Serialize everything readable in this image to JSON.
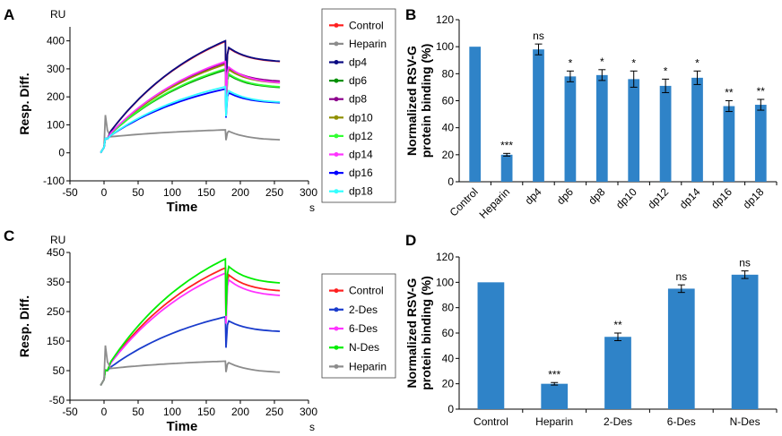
{
  "chart_data": [
    {
      "panel": "A",
      "type": "line",
      "unit": "RU",
      "xlabel": "Time",
      "x_unit": "s",
      "ylabel": "Resp. Diff.",
      "xlim": [
        -50,
        300
      ],
      "ylim": [
        -100,
        450
      ],
      "xticks": [
        "-50",
        "0",
        "50",
        "100",
        "150",
        "200",
        "250",
        "300"
      ],
      "yticks": [
        "-100",
        "0",
        "100",
        "200",
        "300",
        "400"
      ],
      "series": [
        {
          "name": "Control",
          "color": "#ff2020",
          "peak": 398,
          "end": 322
        },
        {
          "name": "Heparin",
          "color": "#8c8c8c",
          "peak": 82,
          "end": 44
        },
        {
          "name": "dp4",
          "color": "#0a0a82",
          "peak": 400,
          "end": 323
        },
        {
          "name": "dp6",
          "color": "#009000",
          "peak": 296,
          "end": 230
        },
        {
          "name": "dp8",
          "color": "#8c008c",
          "peak": 322,
          "end": 252
        },
        {
          "name": "dp10",
          "color": "#909000",
          "peak": 316,
          "end": 246
        },
        {
          "name": "dp12",
          "color": "#33ff33",
          "peak": 300,
          "end": 232
        },
        {
          "name": "dp14",
          "color": "#ff33ff",
          "peak": 326,
          "end": 246
        },
        {
          "name": "dp16",
          "color": "#0000ff",
          "peak": 228,
          "end": 176
        },
        {
          "name": "dp18",
          "color": "#33ffff",
          "peak": 236,
          "end": 178
        }
      ]
    },
    {
      "panel": "B",
      "type": "bar",
      "ylabel": "Normalized RSV-G protein binding (%)",
      "ylim": [
        0,
        120
      ],
      "yticks": [
        "0",
        "20",
        "40",
        "60",
        "80",
        "100",
        "120"
      ],
      "categories": [
        "Control",
        "Heparin",
        "dp4",
        "dp6",
        "dp8",
        "dp10",
        "dp12",
        "dp14",
        "dp16",
        "dp18"
      ],
      "values": [
        100,
        20,
        98,
        78,
        79,
        76,
        71,
        77,
        56,
        57
      ],
      "errors": [
        0,
        1,
        4,
        4,
        4,
        6,
        5,
        5,
        4,
        4
      ],
      "annotations": [
        "",
        "***",
        "ns",
        "*",
        "*",
        "*",
        "*",
        "*",
        "**",
        "**"
      ],
      "color": "#2f83c8"
    },
    {
      "panel": "C",
      "type": "line",
      "unit": "RU",
      "xlabel": "Time",
      "x_unit": "s",
      "ylabel": "Resp. Diff.",
      "xlim": [
        -50,
        300
      ],
      "ylim": [
        -50,
        450
      ],
      "xticks": [
        "-50",
        "0",
        "50",
        "100",
        "150",
        "200",
        "250",
        "300"
      ],
      "yticks": [
        "-50",
        "50",
        "150",
        "250",
        "350",
        "450"
      ],
      "series": [
        {
          "name": "Control",
          "color": "#ff2020",
          "peak": 398,
          "end": 316
        },
        {
          "name": "2-Des",
          "color": "#1a3ccc",
          "peak": 232,
          "end": 180
        },
        {
          "name": "6-Des",
          "color": "#ff33ff",
          "peak": 380,
          "end": 300
        },
        {
          "name": "N-Des",
          "color": "#00ee00",
          "peak": 428,
          "end": 342
        },
        {
          "name": "Heparin",
          "color": "#8c8c8c",
          "peak": 82,
          "end": 42
        }
      ]
    },
    {
      "panel": "D",
      "type": "bar",
      "ylabel": "Normalized RSV-G protein binding (%)",
      "ylim": [
        0,
        120
      ],
      "yticks": [
        "0",
        "20",
        "40",
        "60",
        "80",
        "100",
        "120"
      ],
      "categories": [
        "Control",
        "Heparin",
        "2-Des",
        "6-Des",
        "N-Des"
      ],
      "values": [
        100,
        20,
        57,
        95,
        106
      ],
      "errors": [
        0,
        1,
        3,
        3,
        3
      ],
      "annotations": [
        "",
        "***",
        "**",
        "ns",
        "ns"
      ],
      "color": "#2f83c8"
    }
  ]
}
